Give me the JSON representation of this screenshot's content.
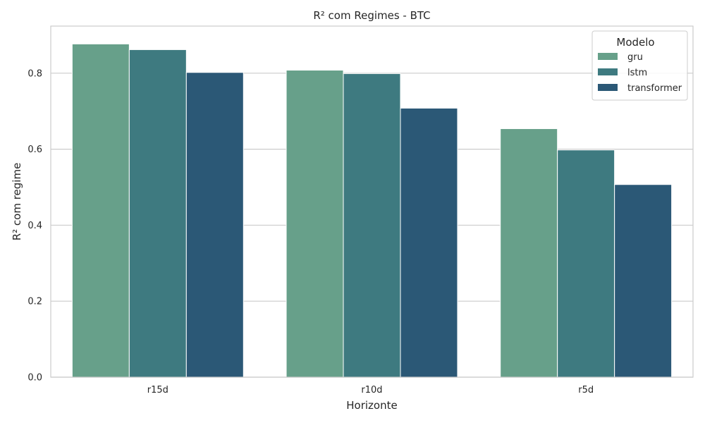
{
  "chart_data": {
    "type": "bar",
    "title": "R² com Regimes - BTC",
    "xlabel": "Horizonte",
    "ylabel": "R² com regime",
    "categories": [
      "r15d",
      "r10d",
      "r5d"
    ],
    "series": [
      {
        "name": "gru",
        "values": [
          0.877,
          0.808,
          0.654
        ],
        "color": "#67a08a"
      },
      {
        "name": "lstm",
        "values": [
          0.862,
          0.799,
          0.598
        ],
        "color": "#3e7a80"
      },
      {
        "name": "transformer",
        "values": [
          0.802,
          0.708,
          0.507
        ],
        "color": "#2b5876"
      }
    ],
    "ylim": [
      0,
      0.924
    ],
    "yticks": [
      0.0,
      0.2,
      0.4,
      0.6,
      0.8
    ],
    "ytick_labels": [
      "0.0",
      "0.2",
      "0.4",
      "0.6",
      "0.8"
    ],
    "grid": true,
    "legend": {
      "title": "Modelo",
      "position": "top-right"
    }
  }
}
